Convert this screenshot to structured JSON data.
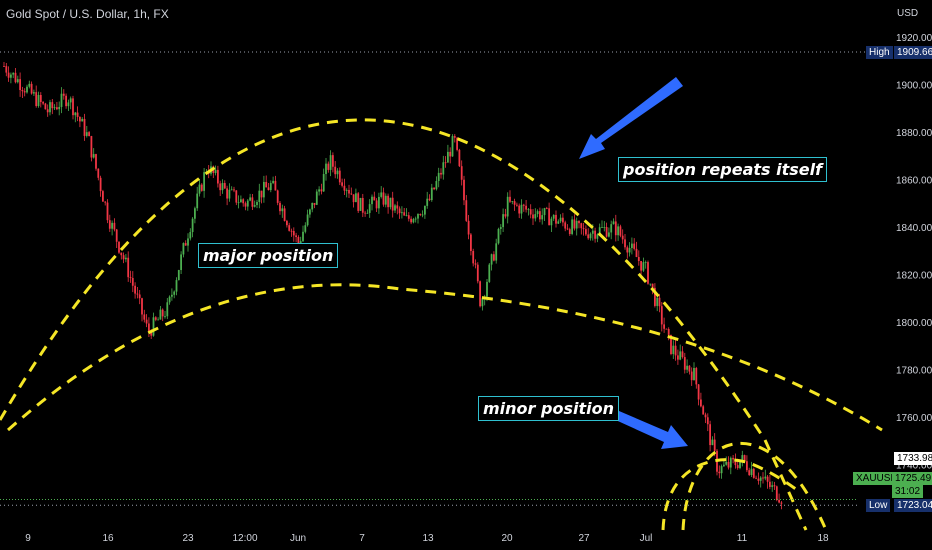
{
  "header": {
    "title": "Gold Spot / U.S. Dollar, 1h, FX"
  },
  "annotations": {
    "major": "major position",
    "minor": "minor position",
    "repeat": "position repeats itself"
  },
  "tags": {
    "high_label": "High",
    "high_value": "1909.66",
    "low_label": "Low",
    "low_value": "1723.04",
    "symbol": "XAUUSD",
    "last_price": "1725.49",
    "countdown": "31:02",
    "ref_price": "1733.98"
  },
  "colors": {
    "up": "#4caf50",
    "down": "#f23645",
    "curve": "#f5e626",
    "note_border": "#2fc0d0",
    "arrow": "#2f6bff",
    "tag_bg": "#17306b"
  },
  "chart_data": {
    "type": "candlestick",
    "title": "Gold Spot / U.S. Dollar, 1h, FX",
    "currency": "USD",
    "y_ticks": [
      1920,
      1900,
      1880,
      1860,
      1840,
      1820,
      1800,
      1780,
      1760,
      1740
    ],
    "ylim": [
      1716,
      1924
    ],
    "x_ticks": [
      "9",
      "16",
      "23",
      "12:00",
      "Jun",
      "7",
      "13",
      "20",
      "27",
      "Jul",
      "11",
      "18"
    ],
    "price_path": [
      [
        "9",
        1908
      ],
      [
        "9",
        1889
      ],
      [
        "9",
        1895
      ],
      [
        "9",
        1878
      ],
      [
        "16",
        1845
      ],
      [
        "16",
        1822
      ],
      [
        "16",
        1796
      ],
      [
        "16",
        1806
      ],
      [
        "23",
        1838
      ],
      [
        "23",
        1866
      ],
      [
        "23",
        1855
      ],
      [
        "12:00",
        1850
      ],
      [
        "12:00",
        1858
      ],
      [
        "Jun",
        1833
      ],
      [
        "Jun",
        1868
      ],
      [
        "7",
        1848
      ],
      [
        "7",
        1852
      ],
      [
        "7",
        1843
      ],
      [
        "13",
        1850
      ],
      [
        "13",
        1877
      ],
      [
        "13",
        1808
      ],
      [
        "20",
        1850
      ],
      [
        "20",
        1845
      ],
      [
        "27",
        1838
      ],
      [
        "27",
        1840
      ],
      [
        "Jul",
        1822
      ],
      [
        "Jul",
        1790
      ],
      [
        "Jul",
        1778
      ],
      [
        "Jul",
        1738
      ],
      [
        "11",
        1742
      ],
      [
        "11",
        1726
      ]
    ],
    "high": 1909.66,
    "low": 1723.04,
    "last": 1725.49,
    "grid": false,
    "legend": "none"
  }
}
